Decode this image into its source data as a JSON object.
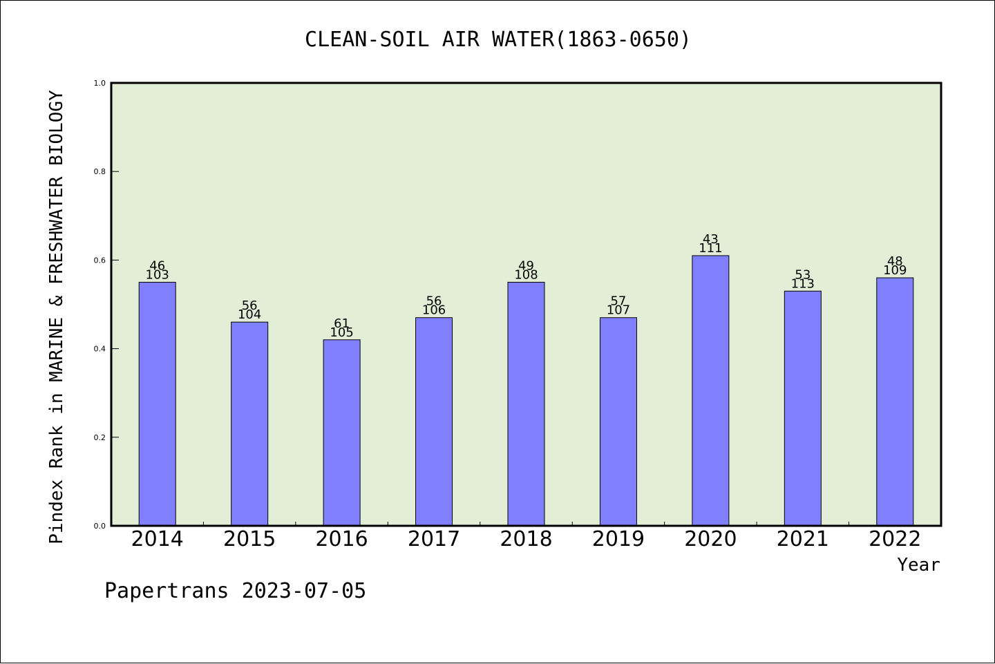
{
  "chart_data": {
    "type": "bar",
    "title": "CLEAN-SOIL AIR WATER(1863-0650)",
    "xlabel": "Year",
    "ylabel": "Pindex Rank in MARINE & FRESHWATER BIOLOGY",
    "categories": [
      "2014",
      "2015",
      "2016",
      "2017",
      "2018",
      "2019",
      "2020",
      "2021",
      "2022"
    ],
    "values": [
      0.55,
      0.46,
      0.42,
      0.47,
      0.55,
      0.47,
      0.61,
      0.53,
      0.56
    ],
    "rank_labels": [
      "46",
      "56",
      "61",
      "56",
      "49",
      "57",
      "43",
      "53",
      "48"
    ],
    "total_labels": [
      "103",
      "104",
      "105",
      "106",
      "108",
      "107",
      "111",
      "113",
      "109"
    ],
    "ylim": [
      0,
      1.0
    ],
    "yticks": [
      "0.0",
      "0.2",
      "0.4",
      "0.6",
      "0.8",
      "1.0"
    ],
    "grid": false,
    "colors": {
      "plot_background": "#e2efd6",
      "bar_fill": "#8080ff",
      "bar_stroke": "#000000"
    }
  },
  "footer": {
    "text": "Papertrans 2023-07-05"
  }
}
